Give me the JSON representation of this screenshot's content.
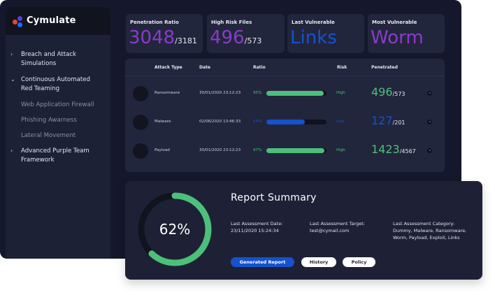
{
  "brand": {
    "name": "Cymulate"
  },
  "sidebar": {
    "items": [
      {
        "chevron": "›",
        "label": "Breach and Attack Simulations",
        "lines": [
          "Breach and Attack",
          "Simulations"
        ]
      },
      {
        "chevron": "⌄",
        "label": "Continuous Automated Red Teaming",
        "lines": [
          "Continuous Automated",
          "Red Teaming"
        ]
      },
      {
        "sub": "Web Application Firewall"
      },
      {
        "sub": "Phishing Awarness"
      },
      {
        "sub": "Lateral Movement"
      },
      {
        "chevron": "›",
        "label": "Advanced Purple Team Framework",
        "lines": [
          "Advanced Purple Team",
          "Framework"
        ]
      }
    ]
  },
  "stats": [
    {
      "label": "Penetration Ratio",
      "value": "3048",
      "suffix": "/3181",
      "color": "#8a3bc8"
    },
    {
      "label": "High Risk Files",
      "value": "496",
      "suffix": "/573",
      "color": "#8a3bc8"
    },
    {
      "label": "Last Vulnerable",
      "value": "Links",
      "suffix": "",
      "color": "#1552cc"
    },
    {
      "label": "Most Vulnerable",
      "value": "Worm",
      "suffix": "",
      "color": "#8a3bc8"
    }
  ],
  "table": {
    "headers": [
      "Attack Type",
      "Date",
      "Ratio",
      "Risk",
      "Penetrated"
    ],
    "rows": [
      {
        "type": "Ransomware",
        "date": "30/01/2020 23:12:23",
        "ratio": "95%",
        "ratio_value": 0.95,
        "risk": "High",
        "pen": "496",
        "pen_total": "/573",
        "color": "#4cc07a"
      },
      {
        "type": "Malware",
        "date": "02/06/2020 13:46:33",
        "ratio": "64%",
        "ratio_value": 0.64,
        "risk": "Low",
        "pen": "127",
        "pen_total": "/201",
        "color": "#1552cc"
      },
      {
        "type": "Payload",
        "date": "30/01/2020 23:12:23",
        "ratio": "97%",
        "ratio_value": 0.97,
        "risk": "High",
        "pen": "1423",
        "pen_total": "/4567",
        "color": "#4cc07a"
      }
    ]
  },
  "report": {
    "title": "Report Summary",
    "percent": "62%",
    "percent_value": 0.62,
    "accent": "#4cc07a",
    "last_date_label": "Last Assessment Date:",
    "last_date": "23/11/2020 15:24:34",
    "last_target_label": "Last Assessment Target:",
    "last_target": "test@cymail.com",
    "last_category_label": "Last Assessment Category:",
    "last_category_lines": [
      "Dummy, Malware, Ransomware,",
      "Worm, Payload, Exploit, Links"
    ],
    "buttons": {
      "generated": "Generated Report",
      "history": "History",
      "policy": "Policy"
    }
  }
}
